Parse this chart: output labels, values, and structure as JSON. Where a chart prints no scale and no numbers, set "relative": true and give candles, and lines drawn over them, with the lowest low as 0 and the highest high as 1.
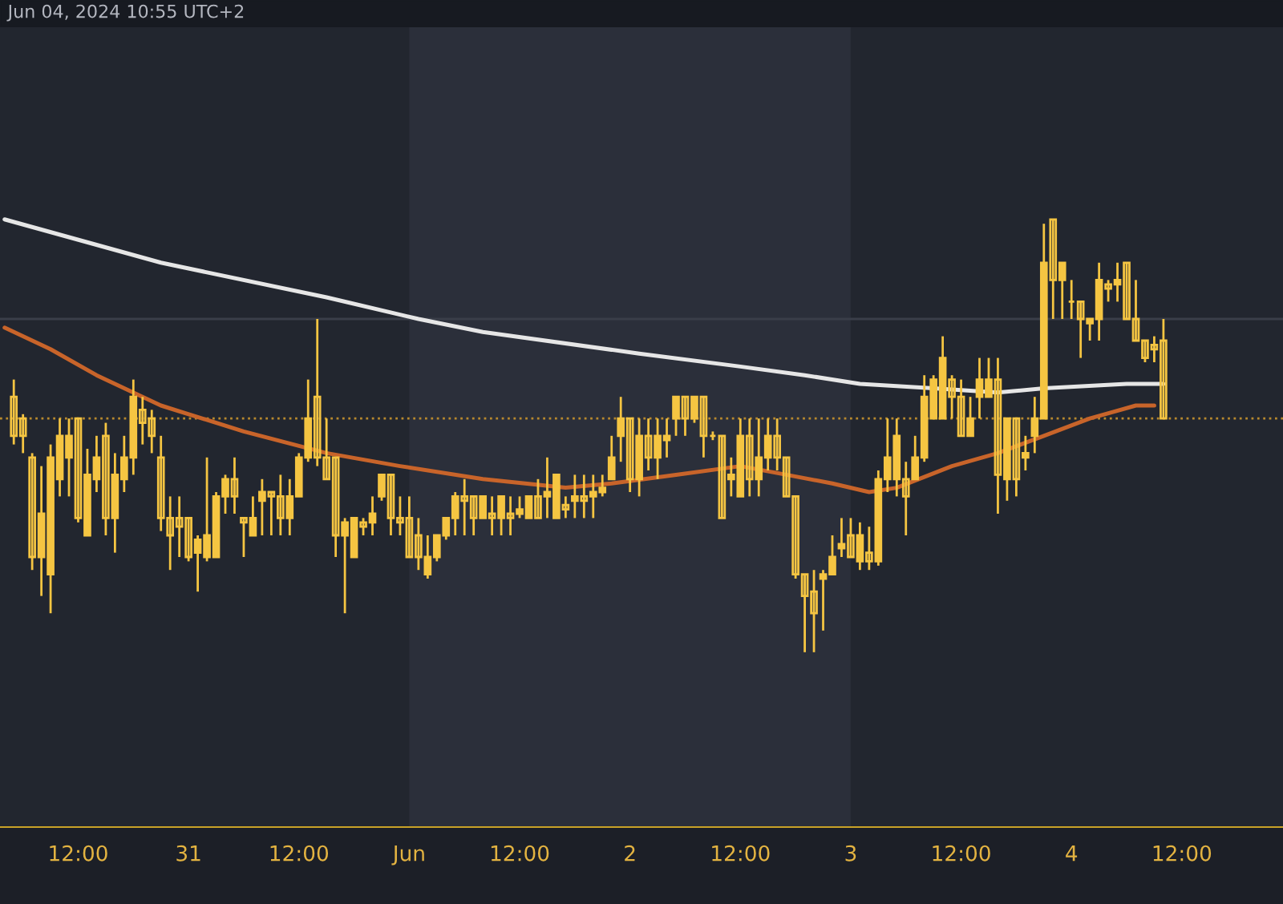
{
  "chart_data": {
    "type": "candlestick",
    "relative": true,
    "color": "#f5c542",
    "grid": false,
    "legend": false,
    "tick_labels": "x",
    "annotations": [
      "Jun 04, 2024 10:55 UTC+2"
    ],
    "xlim": [
      "2024-05-30T03:30",
      "2024-06-04T23:00"
    ],
    "xticks": [
      {
        "value": "2024-05-30T12:00",
        "label": "12:00"
      },
      {
        "value": "2024-05-31T00:00",
        "label": "31"
      },
      {
        "value": "2024-05-31T12:00",
        "label": "12:00"
      },
      {
        "value": "2024-06-01T00:00",
        "label": "Jun"
      },
      {
        "value": "2024-06-01T12:00",
        "label": "12:00"
      },
      {
        "value": "2024-06-02T00:00",
        "label": "2"
      },
      {
        "value": "2024-06-02T12:00",
        "label": "12:00"
      },
      {
        "value": "2024-06-03T00:00",
        "label": "3"
      },
      {
        "value": "2024-06-03T12:00",
        "label": "12:00"
      },
      {
        "value": "2024-06-04T00:00",
        "label": "4"
      },
      {
        "value": "2024-06-04T12:00",
        "label": "12:00"
      }
    ],
    "bands": [
      {
        "axis": "x",
        "from": "2024-06-01T00:00",
        "to": "2024-06-03T00:00",
        "color": "#2b2f3a"
      }
    ],
    "ref_lines": [
      {
        "axis": "y",
        "value": 0.54,
        "color": "#b8892e",
        "line_style": "dotted"
      },
      {
        "axis": "y",
        "value": 0.77,
        "color": "#3a3e49",
        "line_style": "solid"
      }
    ],
    "x": [
      "2024-05-30T05:00",
      "2024-05-30T06:00",
      "2024-05-30T07:00",
      "2024-05-30T08:00",
      "2024-05-30T09:00",
      "2024-05-30T10:00",
      "2024-05-30T11:00",
      "2024-05-30T12:00",
      "2024-05-30T13:00",
      "2024-05-30T14:00",
      "2024-05-30T15:00",
      "2024-05-30T16:00",
      "2024-05-30T17:00",
      "2024-05-30T18:00",
      "2024-05-30T19:00",
      "2024-05-30T20:00",
      "2024-05-30T21:00",
      "2024-05-30T22:00",
      "2024-05-30T23:00",
      "2024-05-31T00:00",
      "2024-05-31T01:00",
      "2024-05-31T02:00",
      "2024-05-31T03:00",
      "2024-05-31T04:00",
      "2024-05-31T05:00",
      "2024-05-31T06:00",
      "2024-05-31T07:00",
      "2024-05-31T08:00",
      "2024-05-31T09:00",
      "2024-05-31T10:00",
      "2024-05-31T11:00",
      "2024-05-31T12:00",
      "2024-05-31T13:00",
      "2024-05-31T14:00",
      "2024-05-31T15:00",
      "2024-05-31T16:00",
      "2024-05-31T17:00",
      "2024-05-31T18:00",
      "2024-05-31T19:00",
      "2024-05-31T20:00",
      "2024-05-31T21:00",
      "2024-05-31T22:00",
      "2024-05-31T23:00",
      "2024-06-01T00:00",
      "2024-06-01T01:00",
      "2024-06-01T02:00",
      "2024-06-01T03:00",
      "2024-06-01T04:00",
      "2024-06-01T05:00",
      "2024-06-01T06:00",
      "2024-06-01T07:00",
      "2024-06-01T08:00",
      "2024-06-01T09:00",
      "2024-06-01T10:00",
      "2024-06-01T11:00",
      "2024-06-01T12:00",
      "2024-06-01T13:00",
      "2024-06-01T14:00",
      "2024-06-01T15:00",
      "2024-06-01T16:00",
      "2024-06-01T17:00",
      "2024-06-01T18:00",
      "2024-06-01T19:00",
      "2024-06-01T20:00",
      "2024-06-01T21:00",
      "2024-06-01T22:00",
      "2024-06-01T23:00",
      "2024-06-02T00:00",
      "2024-06-02T01:00",
      "2024-06-02T02:00",
      "2024-06-02T03:00",
      "2024-06-02T04:00",
      "2024-06-02T05:00",
      "2024-06-02T06:00",
      "2024-06-02T07:00",
      "2024-06-02T08:00",
      "2024-06-02T09:00",
      "2024-06-02T10:00",
      "2024-06-02T11:00",
      "2024-06-02T12:00",
      "2024-06-02T13:00",
      "2024-06-02T14:00",
      "2024-06-02T15:00",
      "2024-06-02T16:00",
      "2024-06-02T17:00",
      "2024-06-02T18:00",
      "2024-06-02T19:00",
      "2024-06-02T20:00",
      "2024-06-02T21:00",
      "2024-06-02T22:00",
      "2024-06-02T23:00",
      "2024-06-03T00:00",
      "2024-06-03T01:00",
      "2024-06-03T02:00",
      "2024-06-03T03:00",
      "2024-06-03T04:00",
      "2024-06-03T05:00",
      "2024-06-03T06:00",
      "2024-06-03T07:00",
      "2024-06-03T08:00",
      "2024-06-03T09:00",
      "2024-06-03T10:00",
      "2024-06-03T11:00",
      "2024-06-03T12:00",
      "2024-06-03T13:00",
      "2024-06-03T14:00",
      "2024-06-03T15:00",
      "2024-06-03T16:00",
      "2024-06-03T17:00",
      "2024-06-03T18:00",
      "2024-06-03T19:00",
      "2024-06-03T20:00",
      "2024-06-03T21:00",
      "2024-06-03T22:00",
      "2024-06-03T23:00",
      "2024-06-04T00:00",
      "2024-06-04T01:00",
      "2024-06-04T02:00",
      "2024-06-04T03:00",
      "2024-06-04T04:00",
      "2024-06-04T05:00",
      "2024-06-04T06:00",
      "2024-06-04T07:00",
      "2024-06-04T08:00",
      "2024-06-04T09:00",
      "2024-06-04T10:00"
    ],
    "ohlc": [
      [
        0.59,
        0.63,
        0.48,
        0.5
      ],
      [
        0.54,
        0.55,
        0.46,
        0.5
      ],
      [
        0.45,
        0.46,
        0.19,
        0.22
      ],
      [
        0.22,
        0.43,
        0.13,
        0.32
      ],
      [
        0.18,
        0.48,
        0.09,
        0.45
      ],
      [
        0.4,
        0.54,
        0.36,
        0.5
      ],
      [
        0.45,
        0.54,
        0.36,
        0.5
      ],
      [
        0.54,
        0.54,
        0.3,
        0.31
      ],
      [
        0.27,
        0.47,
        0.27,
        0.41
      ],
      [
        0.4,
        0.5,
        0.37,
        0.45
      ],
      [
        0.5,
        0.53,
        0.27,
        0.31
      ],
      [
        0.31,
        0.46,
        0.23,
        0.41
      ],
      [
        0.4,
        0.5,
        0.37,
        0.45
      ],
      [
        0.45,
        0.63,
        0.41,
        0.59
      ],
      [
        0.56,
        0.59,
        0.48,
        0.53
      ],
      [
        0.54,
        0.56,
        0.46,
        0.5
      ],
      [
        0.45,
        0.5,
        0.28,
        0.31
      ],
      [
        0.31,
        0.36,
        0.19,
        0.27
      ],
      [
        0.31,
        0.36,
        0.22,
        0.29
      ],
      [
        0.31,
        0.31,
        0.21,
        0.22
      ],
      [
        0.23,
        0.27,
        0.14,
        0.26
      ],
      [
        0.22,
        0.45,
        0.21,
        0.27
      ],
      [
        0.22,
        0.37,
        0.22,
        0.36
      ],
      [
        0.36,
        0.41,
        0.32,
        0.4
      ],
      [
        0.4,
        0.45,
        0.32,
        0.36
      ],
      [
        0.31,
        0.31,
        0.22,
        0.3
      ],
      [
        0.27,
        0.36,
        0.27,
        0.31
      ],
      [
        0.35,
        0.4,
        0.27,
        0.37
      ],
      [
        0.37,
        0.37,
        0.27,
        0.36
      ],
      [
        0.36,
        0.41,
        0.27,
        0.31
      ],
      [
        0.31,
        0.4,
        0.27,
        0.36
      ],
      [
        0.36,
        0.46,
        0.36,
        0.45
      ],
      [
        0.45,
        0.63,
        0.44,
        0.54
      ],
      [
        0.59,
        0.77,
        0.43,
        0.45
      ],
      [
        0.45,
        0.54,
        0.4,
        0.4
      ],
      [
        0.45,
        0.45,
        0.22,
        0.27
      ],
      [
        0.27,
        0.31,
        0.09,
        0.3
      ],
      [
        0.22,
        0.31,
        0.22,
        0.31
      ],
      [
        0.3,
        0.31,
        0.27,
        0.29
      ],
      [
        0.3,
        0.36,
        0.27,
        0.32
      ],
      [
        0.36,
        0.41,
        0.35,
        0.41
      ],
      [
        0.41,
        0.41,
        0.27,
        0.31
      ],
      [
        0.31,
        0.36,
        0.27,
        0.3
      ],
      [
        0.31,
        0.36,
        0.22,
        0.22
      ],
      [
        0.27,
        0.31,
        0.19,
        0.22
      ],
      [
        0.18,
        0.27,
        0.17,
        0.22
      ],
      [
        0.22,
        0.27,
        0.21,
        0.27
      ],
      [
        0.27,
        0.31,
        0.26,
        0.31
      ],
      [
        0.31,
        0.37,
        0.27,
        0.36
      ],
      [
        0.36,
        0.4,
        0.27,
        0.35
      ],
      [
        0.36,
        0.36,
        0.27,
        0.31
      ],
      [
        0.31,
        0.36,
        0.31,
        0.36
      ],
      [
        0.32,
        0.36,
        0.27,
        0.31
      ],
      [
        0.31,
        0.36,
        0.27,
        0.36
      ],
      [
        0.32,
        0.36,
        0.27,
        0.31
      ],
      [
        0.32,
        0.36,
        0.31,
        0.33
      ],
      [
        0.31,
        0.36,
        0.31,
        0.36
      ],
      [
        0.36,
        0.4,
        0.31,
        0.31
      ],
      [
        0.36,
        0.45,
        0.31,
        0.37
      ],
      [
        0.31,
        0.41,
        0.31,
        0.41
      ],
      [
        0.34,
        0.36,
        0.31,
        0.33
      ],
      [
        0.35,
        0.41,
        0.31,
        0.36
      ],
      [
        0.36,
        0.41,
        0.31,
        0.35
      ],
      [
        0.36,
        0.41,
        0.31,
        0.37
      ],
      [
        0.37,
        0.41,
        0.36,
        0.38
      ],
      [
        0.4,
        0.5,
        0.4,
        0.45
      ],
      [
        0.5,
        0.59,
        0.44,
        0.54
      ],
      [
        0.54,
        0.54,
        0.37,
        0.4
      ],
      [
        0.4,
        0.54,
        0.36,
        0.5
      ],
      [
        0.5,
        0.54,
        0.42,
        0.45
      ],
      [
        0.45,
        0.54,
        0.4,
        0.5
      ],
      [
        0.49,
        0.54,
        0.45,
        0.5
      ],
      [
        0.54,
        0.59,
        0.5,
        0.59
      ],
      [
        0.59,
        0.59,
        0.5,
        0.54
      ],
      [
        0.54,
        0.59,
        0.53,
        0.59
      ],
      [
        0.59,
        0.59,
        0.45,
        0.5
      ],
      [
        0.5,
        0.51,
        0.49,
        0.5
      ],
      [
        0.5,
        0.5,
        0.31,
        0.31
      ],
      [
        0.4,
        0.45,
        0.36,
        0.41
      ],
      [
        0.36,
        0.54,
        0.36,
        0.5
      ],
      [
        0.5,
        0.54,
        0.36,
        0.4
      ],
      [
        0.4,
        0.54,
        0.36,
        0.45
      ],
      [
        0.45,
        0.54,
        0.42,
        0.5
      ],
      [
        0.5,
        0.54,
        0.42,
        0.45
      ],
      [
        0.45,
        0.45,
        0.36,
        0.36
      ],
      [
        0.36,
        0.36,
        0.17,
        0.18
      ],
      [
        0.18,
        0.18,
        0.0,
        0.13
      ],
      [
        0.14,
        0.19,
        0.0,
        0.09
      ],
      [
        0.17,
        0.19,
        0.05,
        0.18
      ],
      [
        0.18,
        0.27,
        0.18,
        0.22
      ],
      [
        0.24,
        0.31,
        0.22,
        0.25
      ],
      [
        0.27,
        0.31,
        0.22,
        0.22
      ],
      [
        0.21,
        0.3,
        0.19,
        0.27
      ],
      [
        0.23,
        0.29,
        0.19,
        0.21
      ],
      [
        0.21,
        0.42,
        0.2,
        0.4
      ],
      [
        0.4,
        0.54,
        0.37,
        0.45
      ],
      [
        0.4,
        0.54,
        0.36,
        0.5
      ],
      [
        0.4,
        0.44,
        0.27,
        0.36
      ],
      [
        0.4,
        0.5,
        0.4,
        0.45
      ],
      [
        0.45,
        0.64,
        0.44,
        0.59
      ],
      [
        0.54,
        0.64,
        0.54,
        0.63
      ],
      [
        0.54,
        0.73,
        0.54,
        0.68
      ],
      [
        0.63,
        0.64,
        0.54,
        0.59
      ],
      [
        0.59,
        0.63,
        0.5,
        0.5
      ],
      [
        0.5,
        0.59,
        0.5,
        0.54
      ],
      [
        0.59,
        0.68,
        0.54,
        0.63
      ],
      [
        0.59,
        0.68,
        0.59,
        0.63
      ],
      [
        0.63,
        0.68,
        0.32,
        0.41
      ],
      [
        0.4,
        0.54,
        0.35,
        0.54
      ],
      [
        0.54,
        0.54,
        0.36,
        0.4
      ],
      [
        0.45,
        0.5,
        0.42,
        0.46
      ],
      [
        0.5,
        0.59,
        0.46,
        0.54
      ],
      [
        0.54,
        0.99,
        0.54,
        0.9
      ],
      [
        1.0,
        1.0,
        0.77,
        0.86
      ],
      [
        0.86,
        0.9,
        0.77,
        0.9
      ],
      [
        0.81,
        0.86,
        0.77,
        0.81
      ],
      [
        0.81,
        0.81,
        0.68,
        0.77
      ],
      [
        0.76,
        0.77,
        0.72,
        0.77
      ],
      [
        0.77,
        0.9,
        0.72,
        0.86
      ],
      [
        0.85,
        0.86,
        0.81,
        0.84
      ],
      [
        0.85,
        0.9,
        0.81,
        0.86
      ],
      [
        0.9,
        0.9,
        0.77,
        0.77
      ],
      [
        0.77,
        0.86,
        0.72,
        0.72
      ],
      [
        0.72,
        0.72,
        0.67,
        0.68
      ],
      [
        0.71,
        0.73,
        0.67,
        0.7
      ],
      [
        0.72,
        0.77,
        0.54,
        0.54
      ]
    ],
    "series": [
      {
        "type": "line",
        "color": "#e6e6e6",
        "x": [
          "2024-05-30T04:00",
          "2024-05-30T21:00",
          "2024-05-31T15:00",
          "2024-06-01T01:00",
          "2024-06-01T08:00",
          "2024-06-02T01:00",
          "2024-06-02T12:00",
          "2024-06-02T19:00",
          "2024-06-03T01:00",
          "2024-06-03T09:00",
          "2024-06-03T16:00",
          "2024-06-03T21:00",
          "2024-06-04T06:00",
          "2024-06-04T10:00"
        ],
        "values": [
          1.0,
          0.9,
          0.82,
          0.77,
          0.74,
          0.69,
          0.66,
          0.64,
          0.62,
          0.61,
          0.6,
          0.61,
          0.62,
          0.62
        ]
      },
      {
        "type": "line",
        "color": "#c8642a",
        "x": [
          "2024-05-30T04:00",
          "2024-05-30T09:00",
          "2024-05-30T14:00",
          "2024-05-30T21:00",
          "2024-05-31T06:00",
          "2024-05-31T15:00",
          "2024-05-31T23:00",
          "2024-06-01T08:00",
          "2024-06-01T17:00",
          "2024-06-01T22:00",
          "2024-06-02T05:00",
          "2024-06-02T12:00",
          "2024-06-02T17:00",
          "2024-06-02T22:00",
          "2024-06-03T02:00",
          "2024-06-03T05:00",
          "2024-06-03T11:00",
          "2024-06-03T16:00",
          "2024-06-03T21:00",
          "2024-06-04T02:00",
          "2024-06-04T07:00",
          "2024-06-04T09:00"
        ],
        "values": [
          0.75,
          0.7,
          0.64,
          0.57,
          0.51,
          0.46,
          0.43,
          0.4,
          0.38,
          0.39,
          0.41,
          0.43,
          0.41,
          0.39,
          0.37,
          0.38,
          0.43,
          0.46,
          0.5,
          0.54,
          0.57,
          0.57
        ]
      }
    ]
  }
}
